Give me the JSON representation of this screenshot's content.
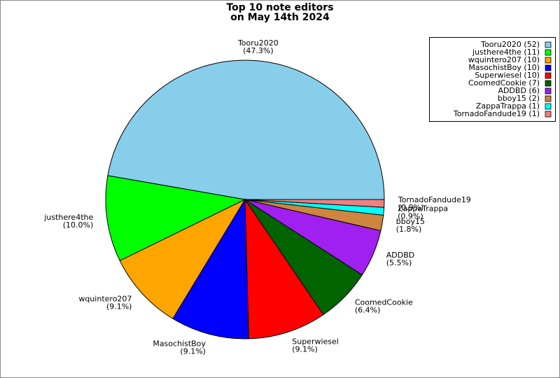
{
  "chart_data": {
    "type": "pie",
    "title": "Top 10 note editors",
    "subtitle": "on May 14th 2024",
    "categories": [
      "Tooru2020",
      "justhere4the",
      "wquintero207",
      "MasochistBoy",
      "Superwiesel",
      "CoomedCookie",
      "ADDBD",
      "bboy15",
      "ZappaTrappa",
      "TornadoFandude19"
    ],
    "values": [
      47.3,
      10.0,
      9.1,
      9.1,
      9.1,
      6.4,
      5.5,
      1.8,
      0.9,
      0.9
    ],
    "value_labels": [
      "(47.3%)",
      "(10.0%)",
      "(9.1%)",
      "(9.1%)",
      "(9.1%)",
      "(6.4%)",
      "(5.5%)",
      "(1.8%)",
      "(0.9%)",
      "(0.9%)"
    ],
    "legend_labels": [
      "Tooru2020 (52)",
      "justhere4the (11)",
      "wquintero207 (10)",
      "MasochistBoy (10)",
      "Superwiesel (10)",
      "CoomedCookie (7)",
      "ADDBD (6)",
      "bboy15 (2)",
      "ZappaTrappa (1)",
      "TornadoFandude19 (1)"
    ],
    "colors": [
      "#87ceeb",
      "#00ff00",
      "#ffa500",
      "#0000ff",
      "#ff0000",
      "#006400",
      "#a020f0",
      "#cd853f",
      "#00ffff",
      "#f08080"
    ],
    "legend": "upper right"
  }
}
